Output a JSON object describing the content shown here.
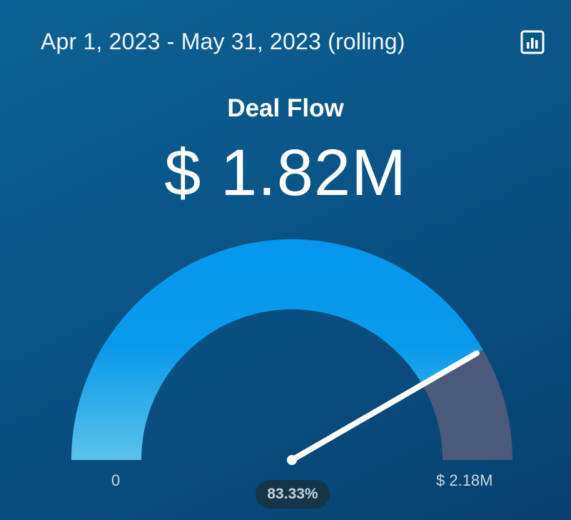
{
  "header": {
    "date_range": "Apr 1, 2023 - May 31, 2023 (rolling)",
    "chart_icon": "bar-chart-icon"
  },
  "metric": {
    "title": "Deal Flow",
    "value": "$ 1.82M"
  },
  "gauge": {
    "min_label": "0",
    "max_label": "$ 2.18M",
    "percent_label": "83.33%",
    "fraction": 0.8333,
    "colors": {
      "fill_top": "#0597ec",
      "fill_bottom": "#5bc3e9",
      "remainder": "#4a5a7a",
      "needle": "#ffffff"
    }
  }
}
